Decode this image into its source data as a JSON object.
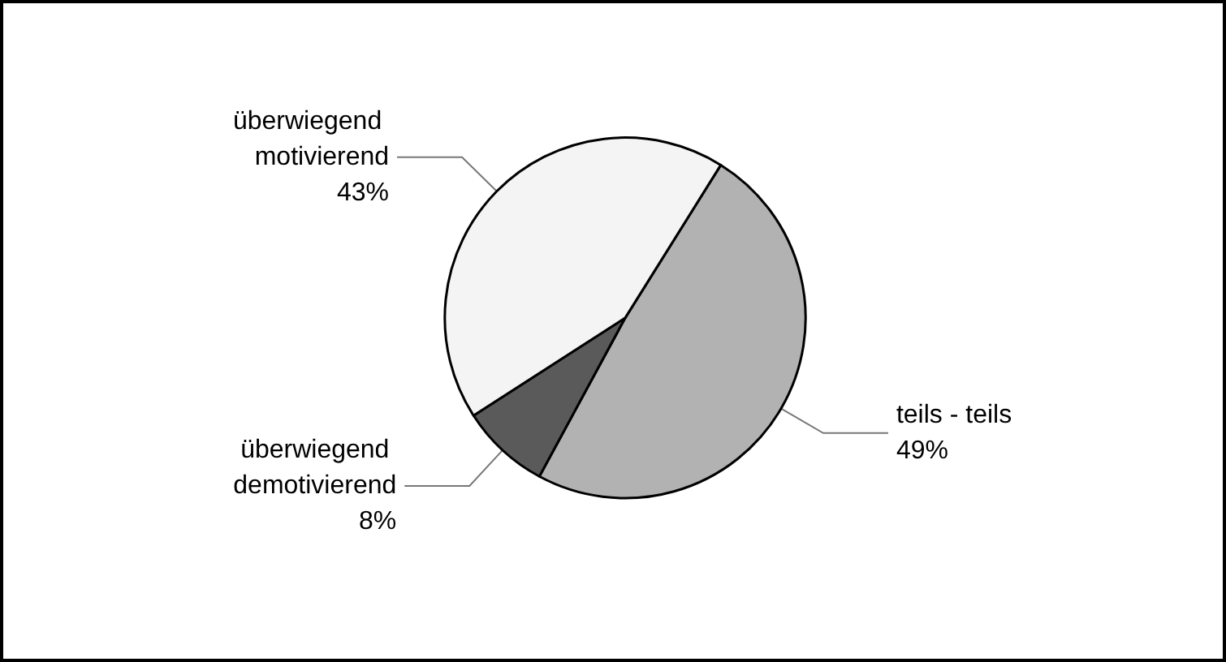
{
  "chart_data": {
    "type": "pie",
    "categories": [
      "teils - teils",
      "überwiegend demotivierend",
      "überwiegend motivierend"
    ],
    "values": [
      49,
      8,
      43
    ],
    "colors": [
      "#b2b2b2",
      "#5a5a5a",
      "#f4f4f4"
    ],
    "value_labels": [
      "49%",
      "8%",
      "43%"
    ],
    "legend": false
  }
}
